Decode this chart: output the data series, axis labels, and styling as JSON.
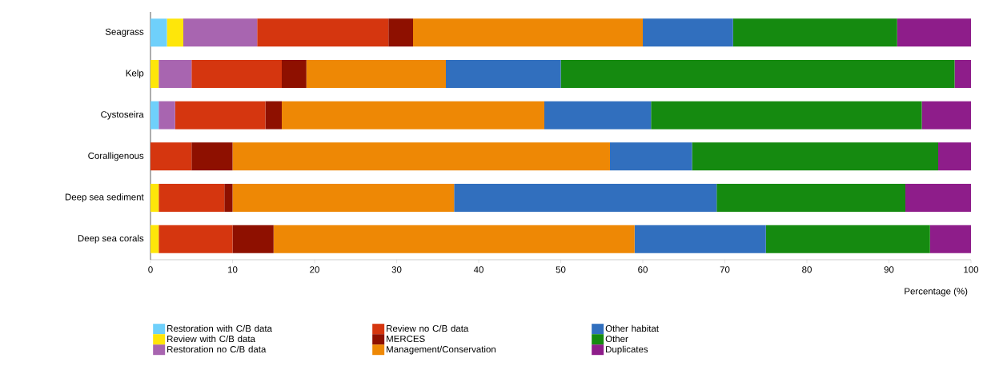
{
  "chart_data": {
    "type": "bar",
    "orientation": "horizontal",
    "stacked": true,
    "categories": [
      "Seagrass",
      "Kelp",
      "Cystoseira",
      "Coralligenous",
      "Deep sea sediment",
      "Deep sea corals"
    ],
    "series": [
      {
        "name": "Restoration with C/B data",
        "color": "#6fd0fb",
        "values": [
          2,
          0,
          1,
          0,
          0,
          0
        ]
      },
      {
        "name": "Review with C/B data",
        "color": "#fee60a",
        "values": [
          2,
          1,
          0,
          0,
          1,
          1
        ]
      },
      {
        "name": "Restoration no C/B data",
        "color": "#a865b0",
        "values": [
          9,
          4,
          2,
          0,
          0,
          0
        ]
      },
      {
        "name": "Review no C/B data",
        "color": "#d5360f",
        "values": [
          16,
          11,
          11,
          5,
          8,
          9
        ]
      },
      {
        "name": "MERCES",
        "color": "#8e1000",
        "values": [
          3,
          3,
          2,
          5,
          1,
          5
        ]
      },
      {
        "name": "Management/Conservation",
        "color": "#ee8805",
        "values": [
          28,
          17,
          32,
          46,
          27,
          44
        ]
      },
      {
        "name": "Other habitat",
        "color": "#316fbe",
        "values": [
          11,
          14,
          13,
          10,
          32,
          16
        ]
      },
      {
        "name": "Other",
        "color": "#158a10",
        "values": [
          20,
          48,
          33,
          30,
          23,
          20
        ]
      },
      {
        "name": "Duplicates",
        "color": "#8e1d8a",
        "values": [
          9,
          2,
          6,
          4,
          8,
          5
        ]
      }
    ],
    "xlim": [
      0,
      100
    ],
    "xticks": [
      0,
      10,
      20,
      30,
      40,
      50,
      60,
      70,
      80,
      90,
      100
    ],
    "xlabel": "Percentage (%)",
    "legend": "bottom"
  }
}
